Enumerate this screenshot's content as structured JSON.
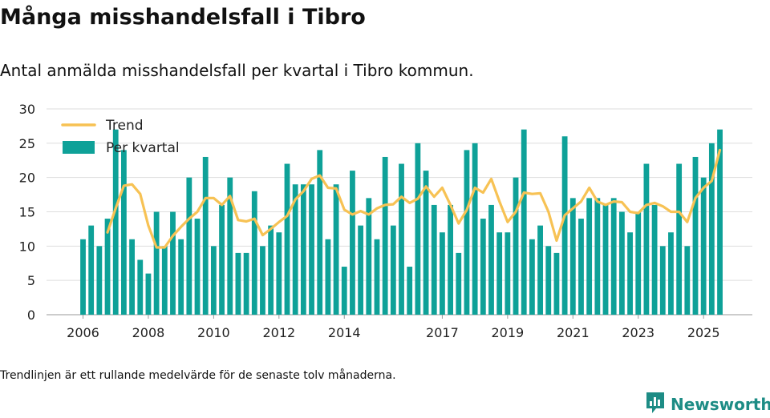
{
  "title": "Många misshandelsfall i Tibro",
  "subtitle": "Antal anmälda misshandelsfall per kvartal i Tibro kommun.",
  "footnote": "Trendlinjen är ett rullande medelvärde för de senaste tolv månaderna.",
  "brand": {
    "name": "Newsworthy",
    "icon": "newsworthy-logo-icon",
    "color": "#1d8c85"
  },
  "chart_data": {
    "type": "bar",
    "y_ticks": [
      0,
      5,
      10,
      15,
      20,
      25,
      30
    ],
    "ylim": [
      0,
      30
    ],
    "x_ticks": [
      {
        "label": "2006",
        "index": 0
      },
      {
        "label": "2008",
        "index": 8
      },
      {
        "label": "2010",
        "index": 16
      },
      {
        "label": "2012",
        "index": 24
      },
      {
        "label": "2014",
        "index": 32
      },
      {
        "label": "2017",
        "index": 44
      },
      {
        "label": "2019",
        "index": 52
      },
      {
        "label": "2021",
        "index": 60
      },
      {
        "label": "2023",
        "index": 68
      },
      {
        "label": "2025",
        "index": 76
      }
    ],
    "legend": [
      {
        "name": "Trend",
        "kind": "line"
      },
      {
        "name": "Per kvartal",
        "kind": "bar"
      }
    ],
    "colors": {
      "bar": "#0ea198",
      "trend": "#f7c254",
      "grid": "#dddddd"
    },
    "series": [
      {
        "name": "Per kvartal",
        "values": [
          11,
          13,
          10,
          14,
          27,
          24,
          11,
          8,
          6,
          15,
          10,
          15,
          11,
          20,
          14,
          23,
          10,
          16,
          20,
          9,
          9,
          18,
          10,
          13,
          12,
          22,
          19,
          19,
          19,
          24,
          11,
          19,
          7,
          21,
          13,
          17,
          11,
          23,
          13,
          22,
          7,
          25,
          21,
          16,
          12,
          16,
          9,
          24,
          25,
          14,
          16,
          12,
          12,
          20,
          27,
          11,
          13,
          10,
          9,
          26,
          17,
          14,
          17,
          17,
          16,
          17,
          15,
          12,
          15,
          22,
          16,
          10,
          12,
          22,
          10,
          23,
          20,
          25,
          27
        ]
      },
      {
        "name": "Trend",
        "start_index": 3,
        "values": [
          12,
          15.5,
          18.8,
          19,
          17.6,
          13,
          9.8,
          9.8,
          11.5,
          12.8,
          14,
          15,
          17,
          17,
          16,
          17.3,
          13.8,
          13.6,
          14,
          11.6,
          12.5,
          13.5,
          14.4,
          16.8,
          18,
          19.8,
          20.3,
          18.5,
          18.4,
          15.3,
          14.6,
          15.1,
          14.6,
          15.5,
          16,
          16.1,
          17.2,
          16.3,
          16.9,
          18.7,
          17.2,
          18.5,
          16,
          13.3,
          15.3,
          18.5,
          17.8,
          19.8,
          16.5,
          13.5,
          15,
          17.8,
          17.6,
          17.7,
          15,
          10.8,
          14.5,
          15.5,
          16.5,
          18.5,
          16.5,
          16,
          16.5,
          16.4,
          15,
          14.8,
          16,
          16.3,
          15.8,
          15,
          15,
          13.5,
          17,
          18.5,
          19.5,
          24
        ]
      }
    ]
  }
}
